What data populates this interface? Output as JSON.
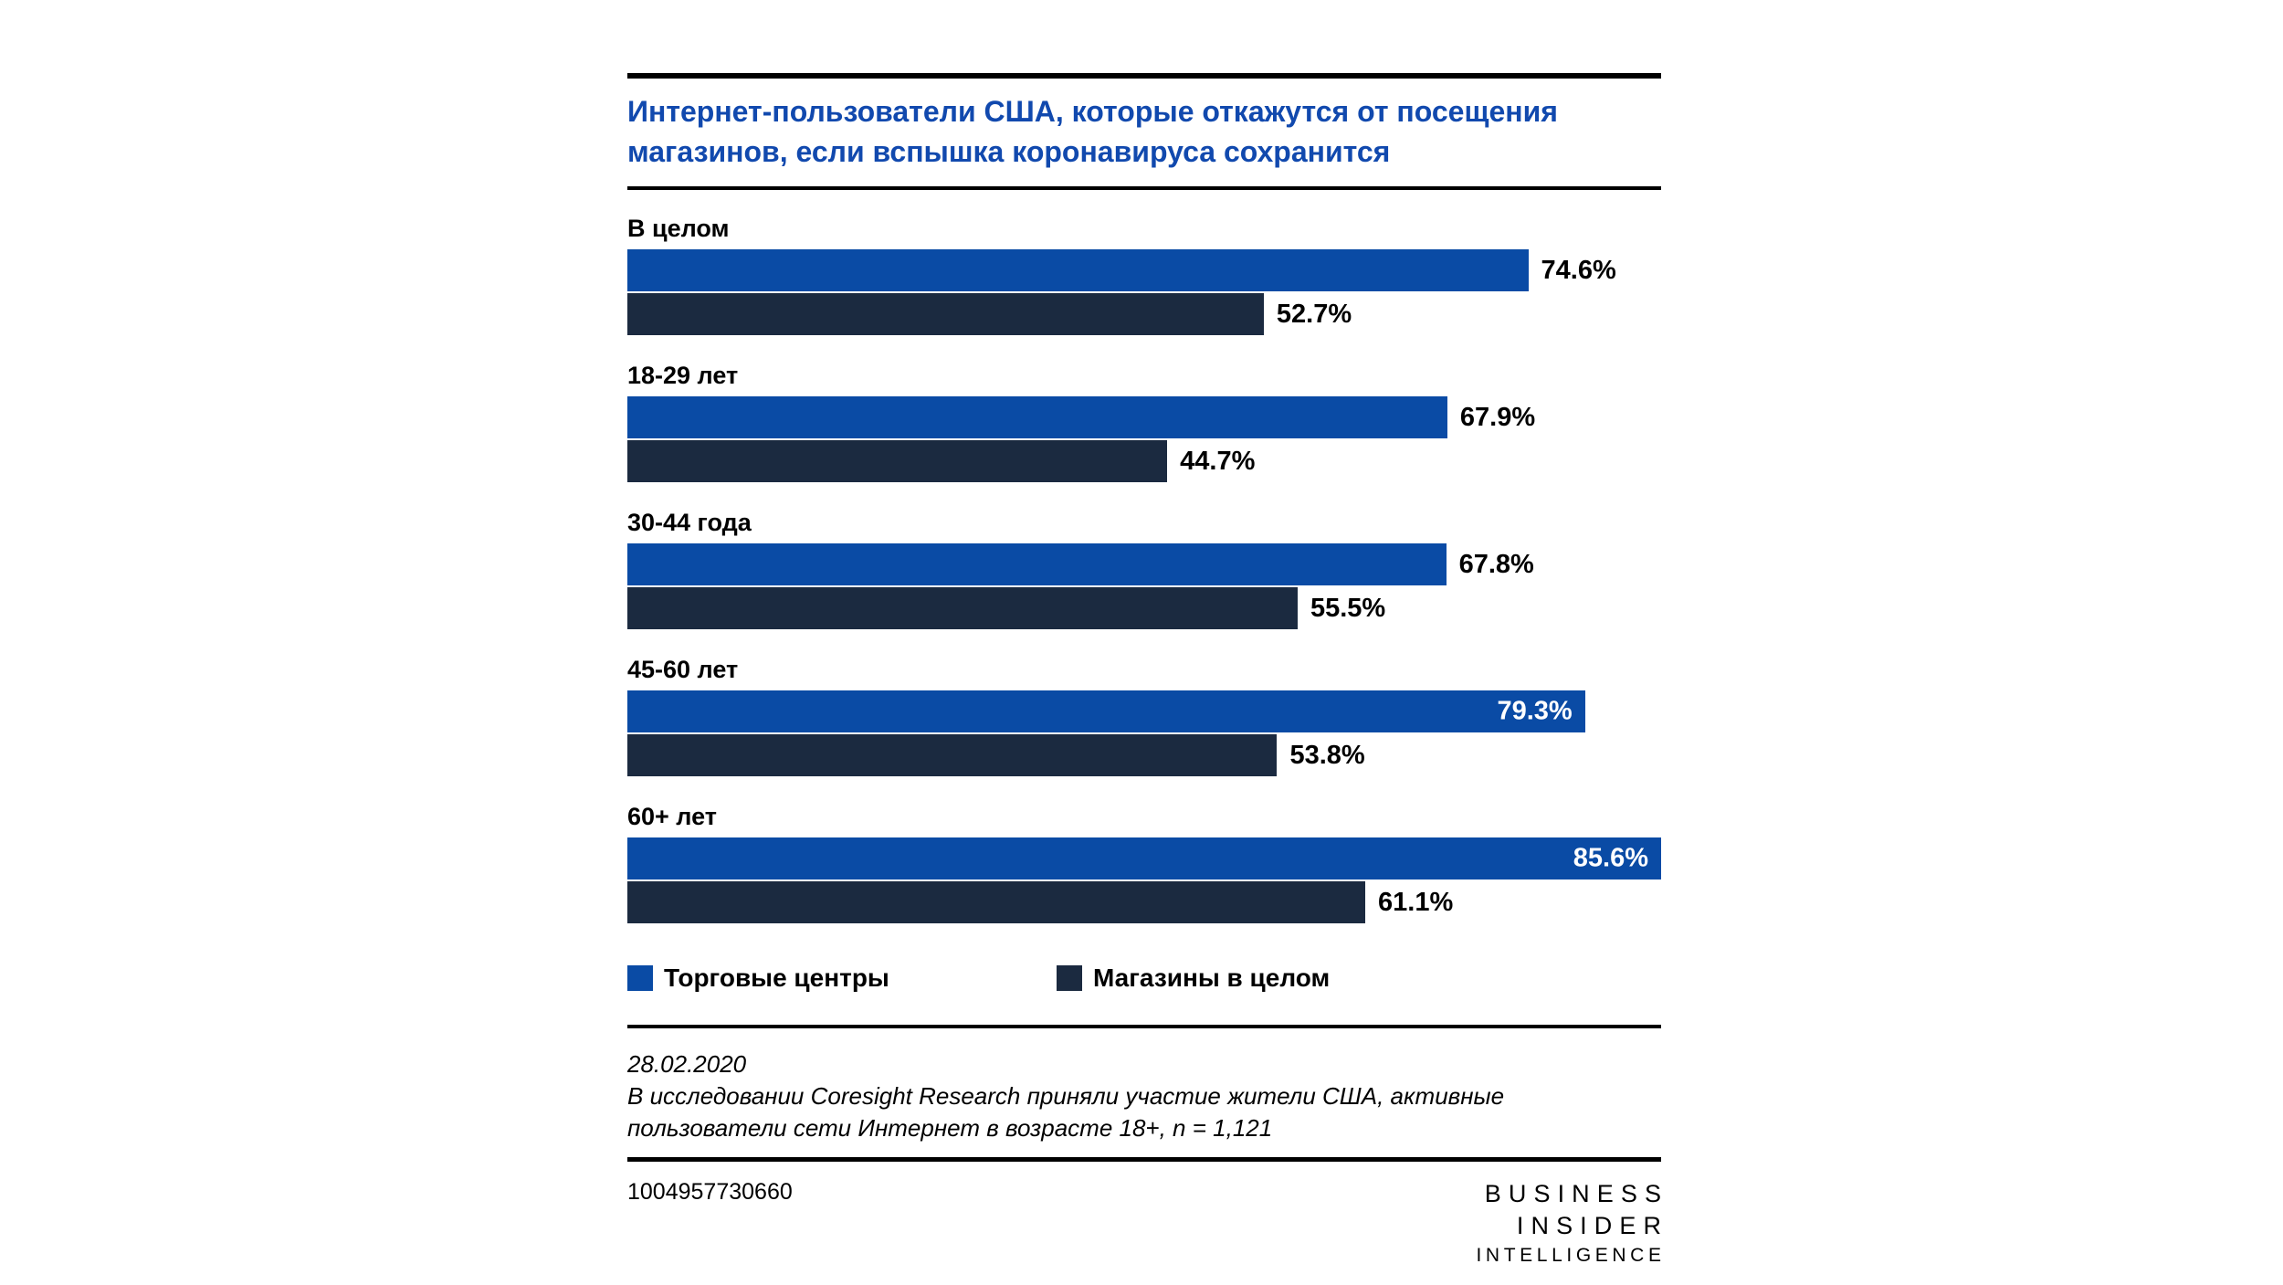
{
  "header": {
    "title_lines": [
      "Интернет-пользователи США, которые откажутся от посещения",
      "магазинов, если вспышка коронавируса сохранится"
    ]
  },
  "chart_data": {
    "type": "bar",
    "orientation": "horizontal",
    "title": "Интернет-пользователи США, которые откажутся от посещения магазинов, если вспышка коронавируса сохранится",
    "categories": [
      "В целом",
      "18-29 лет",
      "30-44 года",
      "45-60 лет",
      "60+ лет"
    ],
    "series": [
      {
        "name": "Торговые центры",
        "color": "#0A4BA5",
        "values": [
          74.6,
          67.9,
          67.8,
          79.3,
          85.6
        ],
        "label_inside": [
          false,
          false,
          false,
          true,
          true
        ]
      },
      {
        "name": "Магазины в целом",
        "color": "#1B2A40",
        "values": [
          52.7,
          44.7,
          55.5,
          53.8,
          61.1
        ],
        "label_inside": [
          false,
          false,
          false,
          false,
          false
        ]
      }
    ],
    "value_suffix": "%",
    "xlim": [
      0,
      85.6
    ],
    "grid": false,
    "legend_position": "bottom"
  },
  "footer": {
    "date": "28.02.2020",
    "source": "В исследовании Coresight Research приняли участие жители США, активные пользователи сети Интернет в возрасте 18+, n = 1,121",
    "chart_id": "1004957730660",
    "brand_lines": [
      "BUSINESS",
      "INSIDER",
      "INTELLIGENCE"
    ]
  },
  "colors": {
    "title_blue": "#1149AE",
    "bar_blue": "#0A4BA5",
    "bar_navy": "#1B2A40",
    "rule_black": "#000000",
    "value_label_inside": "#FFFFFF",
    "value_label_outside": "#000000",
    "background": "#FFFFFF"
  }
}
